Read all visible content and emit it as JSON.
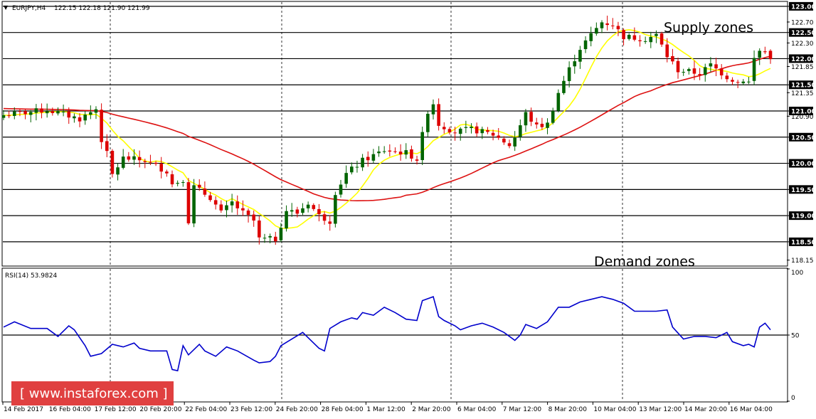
{
  "chart_data": [
    {
      "type": "candlestick",
      "symbol_header": "EURJPY,H4",
      "ohlc_header": "122.15 122.18 121.90 121.99",
      "ylim": [
        118.05,
        123.08
      ],
      "y_ticks": [
        {
          "value": 123.0,
          "label": "123.00",
          "highlight": true
        },
        {
          "value": 122.7,
          "label": "122.70",
          "highlight": false
        },
        {
          "value": 122.5,
          "label": "122.50",
          "highlight": true
        },
        {
          "value": 122.3,
          "label": "122.30",
          "highlight": false
        },
        {
          "value": 122.0,
          "label": "122.00",
          "highlight": true
        },
        {
          "value": 121.85,
          "label": "121.85",
          "highlight": false
        },
        {
          "value": 121.5,
          "label": "121.50",
          "highlight": true
        },
        {
          "value": 121.35,
          "label": "121.35",
          "highlight": false
        },
        {
          "value": 121.0,
          "label": "121.00",
          "highlight": true
        },
        {
          "value": 120.9,
          "label": "120.90",
          "highlight": false
        },
        {
          "value": 120.5,
          "label": "120.50",
          "highlight": true
        },
        {
          "value": 120.0,
          "label": "120.00",
          "highlight": true
        },
        {
          "value": 119.5,
          "label": "119.50",
          "highlight": true
        },
        {
          "value": 119.0,
          "label": "119.00",
          "highlight": true
        },
        {
          "value": 118.5,
          "label": "118.50",
          "highlight": true
        },
        {
          "value": 118.15,
          "label": "118.15",
          "highlight": false
        }
      ],
      "horizontal_levels": [
        123.0,
        122.5,
        122.0,
        121.5,
        121.0,
        120.5,
        120.0,
        119.5,
        119.0,
        118.5
      ],
      "x_labels": [
        "14 Feb 2017",
        "16 Feb 04:00",
        "17 Feb 12:00",
        "20 Feb 20:00",
        "22 Feb 04:00",
        "23 Feb 12:00",
        "24 Feb 20:00",
        "28 Feb 04:00",
        "1 Mar 12:00",
        "2 Mar 20:00",
        "6 Mar 04:00",
        "7 Mar 12:00",
        "8 Mar 20:00",
        "10 Mar 04:00",
        "13 Mar 12:00",
        "14 Mar 20:00",
        "16 Mar 04:00"
      ],
      "vertical_dividers_at_label_index": [
        2,
        6,
        9,
        13
      ],
      "annotations": [
        {
          "text": "Supply zones",
          "anchor_price": 122.72
        },
        {
          "text": "Demand zones",
          "anchor_price": 118.25
        }
      ],
      "bull_color": "#006400",
      "bear_color": "#dd0000",
      "fast_ma_color": "#ffff00",
      "slow_ma_color": "#dd1111",
      "close_path": [
        [
          0,
          120.92
        ],
        [
          8,
          121.02
        ],
        [
          14,
          120.85
        ],
        [
          17,
          121.04
        ],
        [
          18,
          120.45
        ],
        [
          19,
          120.18
        ],
        [
          20,
          119.78
        ],
        [
          22,
          120.1
        ],
        [
          26,
          120.05
        ],
        [
          30,
          119.85
        ],
        [
          31,
          119.6
        ],
        [
          33,
          119.7
        ],
        [
          34,
          118.9
        ],
        [
          35,
          119.55
        ],
        [
          38,
          119.35
        ],
        [
          40,
          119.05
        ],
        [
          42,
          119.25
        ],
        [
          44,
          119.05
        ],
        [
          46,
          118.9
        ],
        [
          47,
          118.55
        ],
        [
          50,
          118.55
        ],
        [
          52,
          119.1
        ],
        [
          54,
          119.05
        ],
        [
          56,
          119.25
        ],
        [
          58,
          119.0
        ],
        [
          60,
          118.9
        ],
        [
          61,
          119.45
        ],
        [
          63,
          119.8
        ],
        [
          66,
          120.05
        ],
        [
          70,
          120.25
        ],
        [
          74,
          120.2
        ],
        [
          76,
          120.08
        ],
        [
          78,
          121.0
        ],
        [
          79,
          121.15
        ],
        [
          80,
          120.75
        ],
        [
          83,
          120.6
        ],
        [
          86,
          120.65
        ],
        [
          90,
          120.55
        ],
        [
          93,
          120.35
        ],
        [
          94,
          120.5
        ],
        [
          96,
          120.95
        ],
        [
          98,
          120.7
        ],
        [
          100,
          120.75
        ],
        [
          102,
          121.35
        ],
        [
          104,
          121.8
        ],
        [
          106,
          122.2
        ],
        [
          108,
          122.45
        ],
        [
          110,
          122.7
        ],
        [
          112,
          122.65
        ],
        [
          114,
          122.42
        ],
        [
          118,
          122.38
        ],
        [
          120,
          122.45
        ],
        [
          122,
          122.05
        ],
        [
          124,
          121.78
        ],
        [
          128,
          121.72
        ],
        [
          130,
          121.88
        ],
        [
          133,
          121.65
        ],
        [
          135,
          121.55
        ],
        [
          136,
          121.6
        ],
        [
          137,
          121.55
        ],
        [
          138,
          122.0
        ],
        [
          139,
          122.15
        ],
        [
          140,
          122.12
        ],
        [
          141,
          121.99
        ]
      ],
      "sma_fast_period": 8,
      "sma_slow_period": 40,
      "sma_slow_seed": 121.05
    },
    {
      "type": "line",
      "name": "RSI(14) 53.9824",
      "ylim": [
        0,
        100
      ],
      "y_ticks": [
        {
          "value": 100,
          "label": "100"
        },
        {
          "value": 50,
          "label": "50"
        },
        {
          "value": 0,
          "label": "0"
        }
      ],
      "reference_level": 50,
      "color": "#0000cc",
      "points": [
        [
          0,
          56
        ],
        [
          2,
          60
        ],
        [
          5,
          55
        ],
        [
          8,
          55
        ],
        [
          10,
          49
        ],
        [
          12,
          57
        ],
        [
          13,
          54
        ],
        [
          15,
          42
        ],
        [
          16,
          34
        ],
        [
          18,
          36
        ],
        [
          20,
          43
        ],
        [
          22,
          41
        ],
        [
          24,
          44
        ],
        [
          25,
          40
        ],
        [
          27,
          38
        ],
        [
          30,
          38
        ],
        [
          31,
          24
        ],
        [
          32,
          23
        ],
        [
          33,
          42
        ],
        [
          34,
          35
        ],
        [
          36,
          43
        ],
        [
          37,
          38
        ],
        [
          39,
          34
        ],
        [
          41,
          41
        ],
        [
          43,
          38
        ],
        [
          46,
          31
        ],
        [
          47,
          29
        ],
        [
          49,
          30
        ],
        [
          50,
          34
        ],
        [
          51,
          42
        ],
        [
          53,
          47
        ],
        [
          55,
          52
        ],
        [
          56,
          48
        ],
        [
          58,
          40
        ],
        [
          59,
          38
        ],
        [
          60,
          55
        ],
        [
          62,
          60
        ],
        [
          64,
          63
        ],
        [
          65,
          62
        ],
        [
          66,
          67
        ],
        [
          68,
          65
        ],
        [
          70,
          71
        ],
        [
          72,
          67
        ],
        [
          74,
          62
        ],
        [
          76,
          61
        ],
        [
          77,
          76
        ],
        [
          79,
          79
        ],
        [
          80,
          64
        ],
        [
          81,
          61
        ],
        [
          83,
          57
        ],
        [
          84,
          54
        ],
        [
          86,
          57
        ],
        [
          88,
          59
        ],
        [
          90,
          56
        ],
        [
          92,
          52
        ],
        [
          94,
          46
        ],
        [
          95,
          50
        ],
        [
          96,
          58
        ],
        [
          98,
          55
        ],
        [
          100,
          60
        ],
        [
          102,
          71
        ],
        [
          104,
          71
        ],
        [
          106,
          75
        ],
        [
          108,
          77
        ],
        [
          110,
          79
        ],
        [
          112,
          77
        ],
        [
          114,
          74
        ],
        [
          116,
          68
        ],
        [
          118,
          68
        ],
        [
          120,
          68
        ],
        [
          122,
          69
        ],
        [
          123,
          56
        ],
        [
          125,
          47
        ],
        [
          127,
          49
        ],
        [
          129,
          49
        ],
        [
          131,
          48
        ],
        [
          133,
          52
        ],
        [
          134,
          45
        ],
        [
          136,
          42
        ],
        [
          137,
          43
        ],
        [
          138,
          41
        ],
        [
          139,
          56
        ],
        [
          140,
          59
        ],
        [
          141,
          54
        ]
      ]
    }
  ],
  "watermark": {
    "text": "[ www.instaforex.com ]",
    "bg_color": "#e04040"
  }
}
